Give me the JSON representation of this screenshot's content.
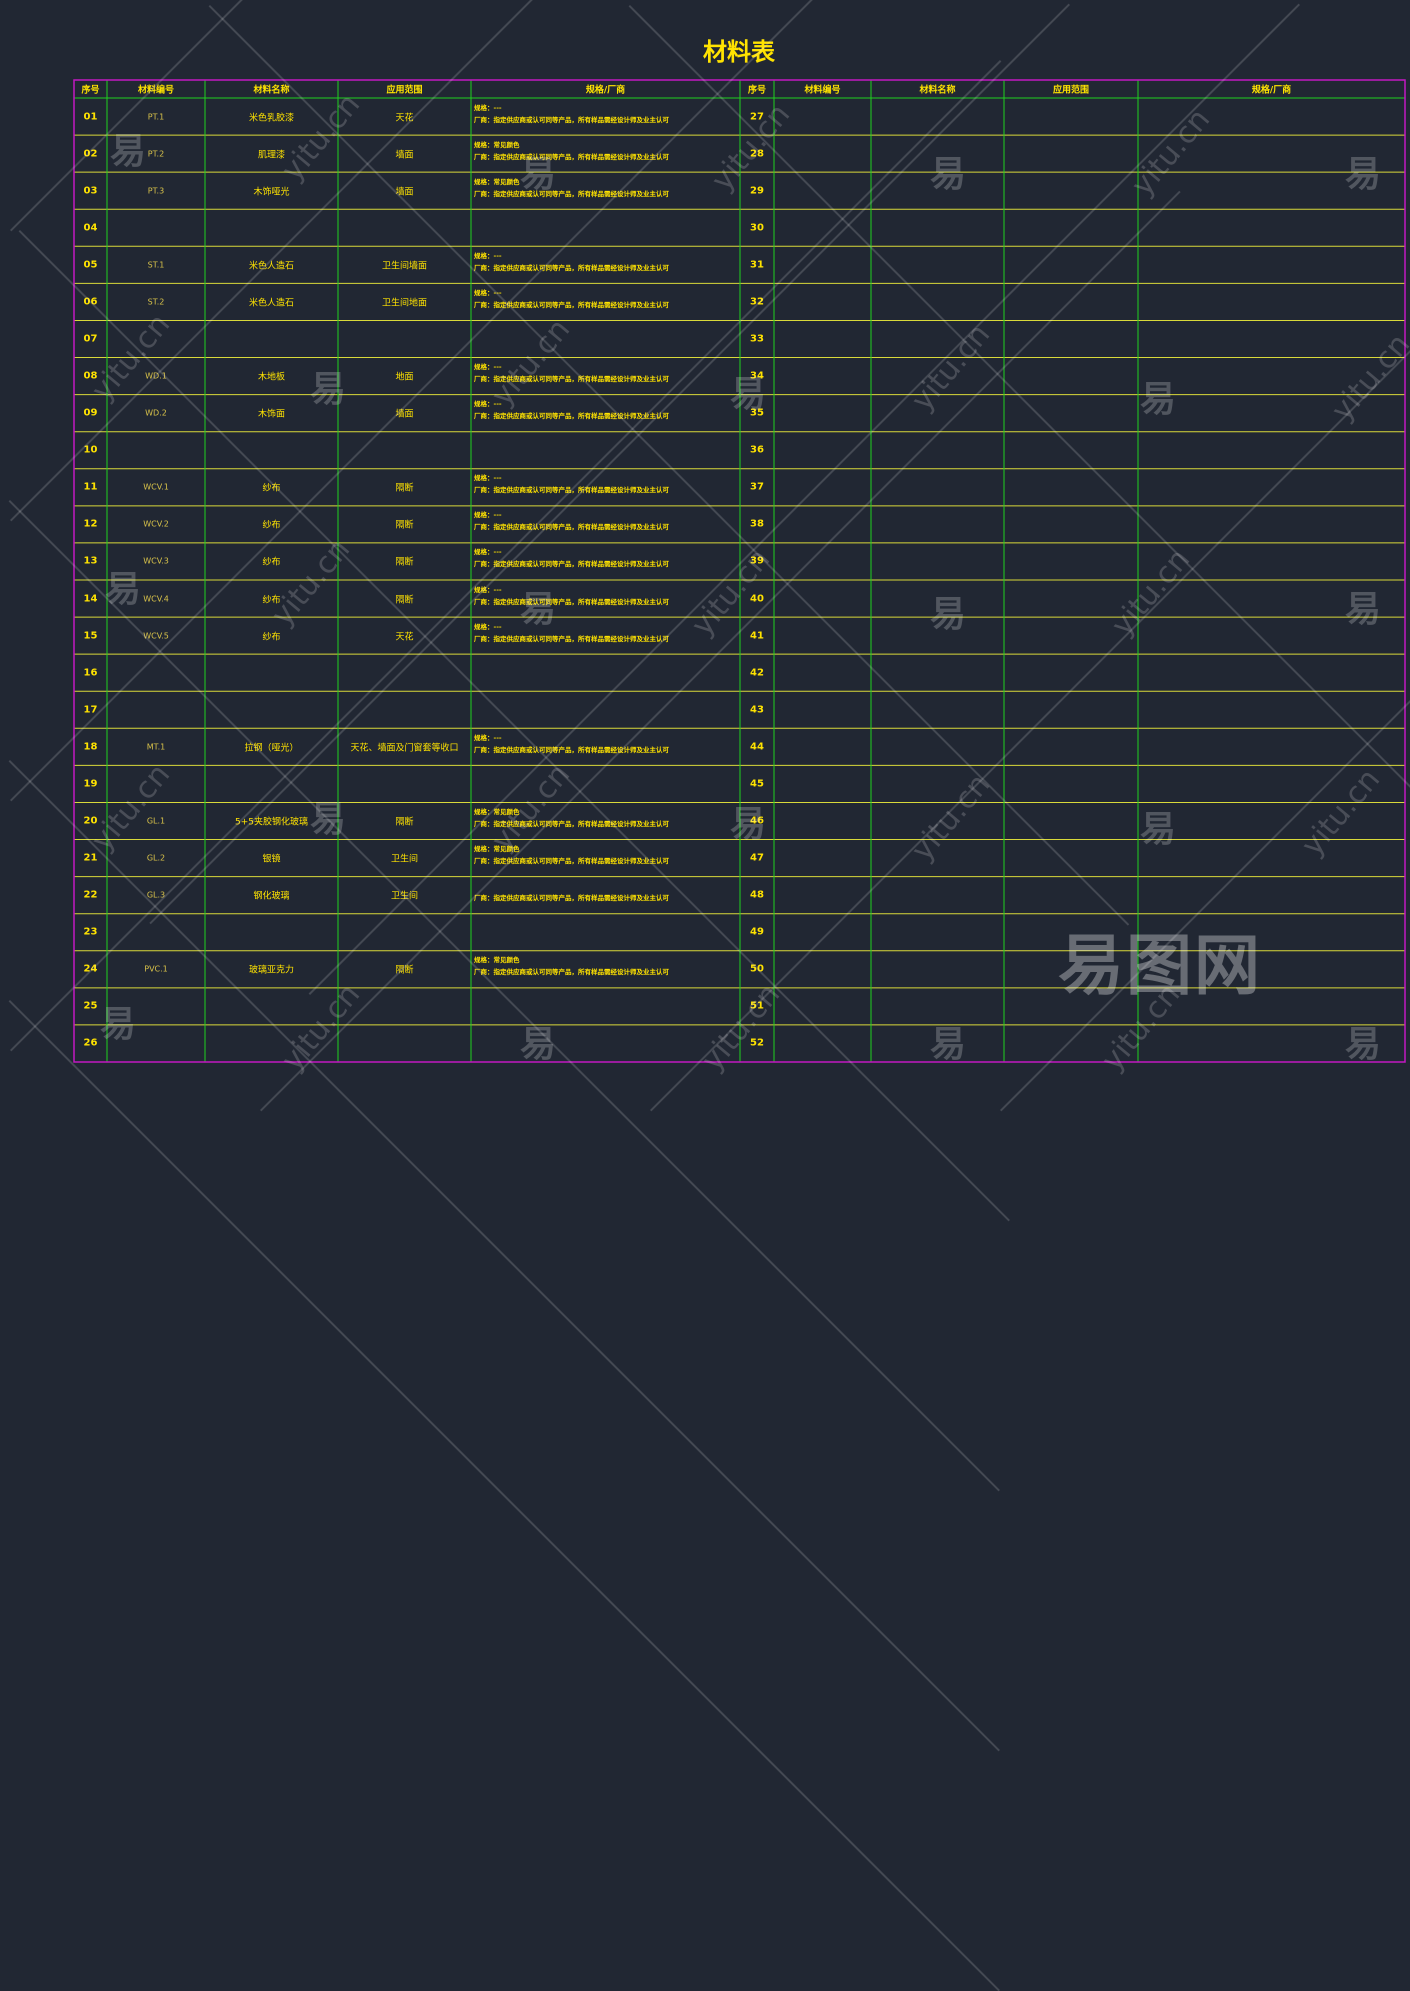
{
  "title": "材料表",
  "headers_left": [
    "序号",
    "材料编号",
    "材料名称",
    "应用范围",
    "规格/厂商"
  ],
  "headers_right": [
    "序号",
    "材料编号",
    "材料名称",
    "应用范围",
    "规格/厂商"
  ],
  "rows_left": [
    {
      "idx": "01",
      "code": "PT.1",
      "name": "米色乳胶漆",
      "area": "天花",
      "note1": "规格：---",
      "note2": "厂商：指定供应商或认可同等产品，所有样品需经设计师及业主认可"
    },
    {
      "idx": "02",
      "code": "PT.2",
      "name": "肌理漆",
      "area": "墙面",
      "note1": "规格：常见颜色",
      "note2": "厂商：指定供应商或认可同等产品，所有样品需经设计师及业主认可"
    },
    {
      "idx": "03",
      "code": "PT.3",
      "name": "木饰哑光",
      "area": "墙面",
      "note1": "规格：常见颜色",
      "note2": "厂商：指定供应商或认可同等产品，所有样品需经设计师及业主认可"
    },
    {
      "idx": "04",
      "code": "",
      "name": "",
      "area": "",
      "note1": "",
      "note2": ""
    },
    {
      "idx": "05",
      "code": "ST.1",
      "name": "米色人造石",
      "area": "卫生间墙面",
      "note1": "规格：---",
      "note2": "厂商：指定供应商或认可同等产品，所有样品需经设计师及业主认可"
    },
    {
      "idx": "06",
      "code": "ST.2",
      "name": "米色人造石",
      "area": "卫生间地面",
      "note1": "规格：---",
      "note2": "厂商：指定供应商或认可同等产品，所有样品需经设计师及业主认可"
    },
    {
      "idx": "07",
      "code": "",
      "name": "",
      "area": "",
      "note1": "",
      "note2": ""
    },
    {
      "idx": "08",
      "code": "WD.1",
      "name": "木地板",
      "area": "地面",
      "note1": "规格：---",
      "note2": "厂商：指定供应商或认可同等产品，所有样品需经设计师及业主认可"
    },
    {
      "idx": "09",
      "code": "WD.2",
      "name": "木饰面",
      "area": "墙面",
      "note1": "规格：---",
      "note2": "厂商：指定供应商或认可同等产品，所有样品需经设计师及业主认可"
    },
    {
      "idx": "10",
      "code": "",
      "name": "",
      "area": "",
      "note1": "",
      "note2": ""
    },
    {
      "idx": "11",
      "code": "WCV.1",
      "name": "纱布",
      "area": "隔断",
      "note1": "规格：---",
      "note2": "厂商：指定供应商或认可同等产品，所有样品需经设计师及业主认可"
    },
    {
      "idx": "12",
      "code": "WCV.2",
      "name": "纱布",
      "area": "隔断",
      "note1": "规格：---",
      "note2": "厂商：指定供应商或认可同等产品，所有样品需经设计师及业主认可"
    },
    {
      "idx": "13",
      "code": "WCV.3",
      "name": "纱布",
      "area": "隔断",
      "note1": "规格：---",
      "note2": "厂商：指定供应商或认可同等产品，所有样品需经设计师及业主认可"
    },
    {
      "idx": "14",
      "code": "WCV.4",
      "name": "纱布",
      "area": "隔断",
      "note1": "规格：---",
      "note2": "厂商：指定供应商或认可同等产品，所有样品需经设计师及业主认可"
    },
    {
      "idx": "15",
      "code": "WCV.5",
      "name": "纱布",
      "area": "天花",
      "note1": "规格：---",
      "note2": "厂商：指定供应商或认可同等产品，所有样品需经设计师及业主认可"
    },
    {
      "idx": "16",
      "code": "",
      "name": "",
      "area": "",
      "note1": "",
      "note2": ""
    },
    {
      "idx": "17",
      "code": "",
      "name": "",
      "area": "",
      "note1": "",
      "note2": ""
    },
    {
      "idx": "18",
      "code": "MT.1",
      "name": "拉钢（哑光）",
      "area": "天花、墙面及门窗套等收口",
      "note1": "规格：---",
      "note2": "厂商：指定供应商或认可同等产品，所有样品需经设计师及业主认可"
    },
    {
      "idx": "19",
      "code": "",
      "name": "",
      "area": "",
      "note1": "",
      "note2": ""
    },
    {
      "idx": "20",
      "code": "GL.1",
      "name": "5+5夹胶钢化玻璃",
      "area": "隔断",
      "note1": "规格：常见颜色",
      "note2": "厂商：指定供应商或认可同等产品，所有样品需经设计师及业主认可"
    },
    {
      "idx": "21",
      "code": "GL.2",
      "name": "银镜",
      "area": "卫生间",
      "note1": "规格：常见颜色",
      "note2": "厂商：指定供应商或认可同等产品，所有样品需经设计师及业主认可"
    },
    {
      "idx": "22",
      "code": "GL.3",
      "name": "钢化玻璃",
      "area": "卫生间",
      "note1": "",
      "note2": "厂商：指定供应商或认可同等产品，所有样品需经设计师及业主认可"
    },
    {
      "idx": "23",
      "code": "",
      "name": "",
      "area": "",
      "note1": "",
      "note2": ""
    },
    {
      "idx": "24",
      "code": "PVC.1",
      "name": "玻璃亚克力",
      "area": "隔断",
      "note1": "规格：常见颜色",
      "note2": "厂商：指定供应商或认可同等产品，所有样品需经设计师及业主认可"
    },
    {
      "idx": "25",
      "code": "",
      "name": "",
      "area": "",
      "note1": "",
      "note2": ""
    },
    {
      "idx": "26",
      "code": "",
      "name": "",
      "area": "",
      "note1": "",
      "note2": ""
    }
  ],
  "rows_right_idx": [
    "27",
    "28",
    "29",
    "30",
    "31",
    "32",
    "33",
    "34",
    "35",
    "36",
    "37",
    "38",
    "39",
    "40",
    "41",
    "42",
    "43",
    "44",
    "45",
    "46",
    "47",
    "48",
    "49",
    "50",
    "51",
    "52"
  ],
  "watermark_char": "易",
  "watermark_url": "yitu.cn",
  "logo": "易图网",
  "colors": {
    "bg": "#212733",
    "text": "#ffe300",
    "grid_green": "#1fd11f",
    "grid_yellow": "#d9d93a",
    "border_magenta": "#c218c2"
  }
}
